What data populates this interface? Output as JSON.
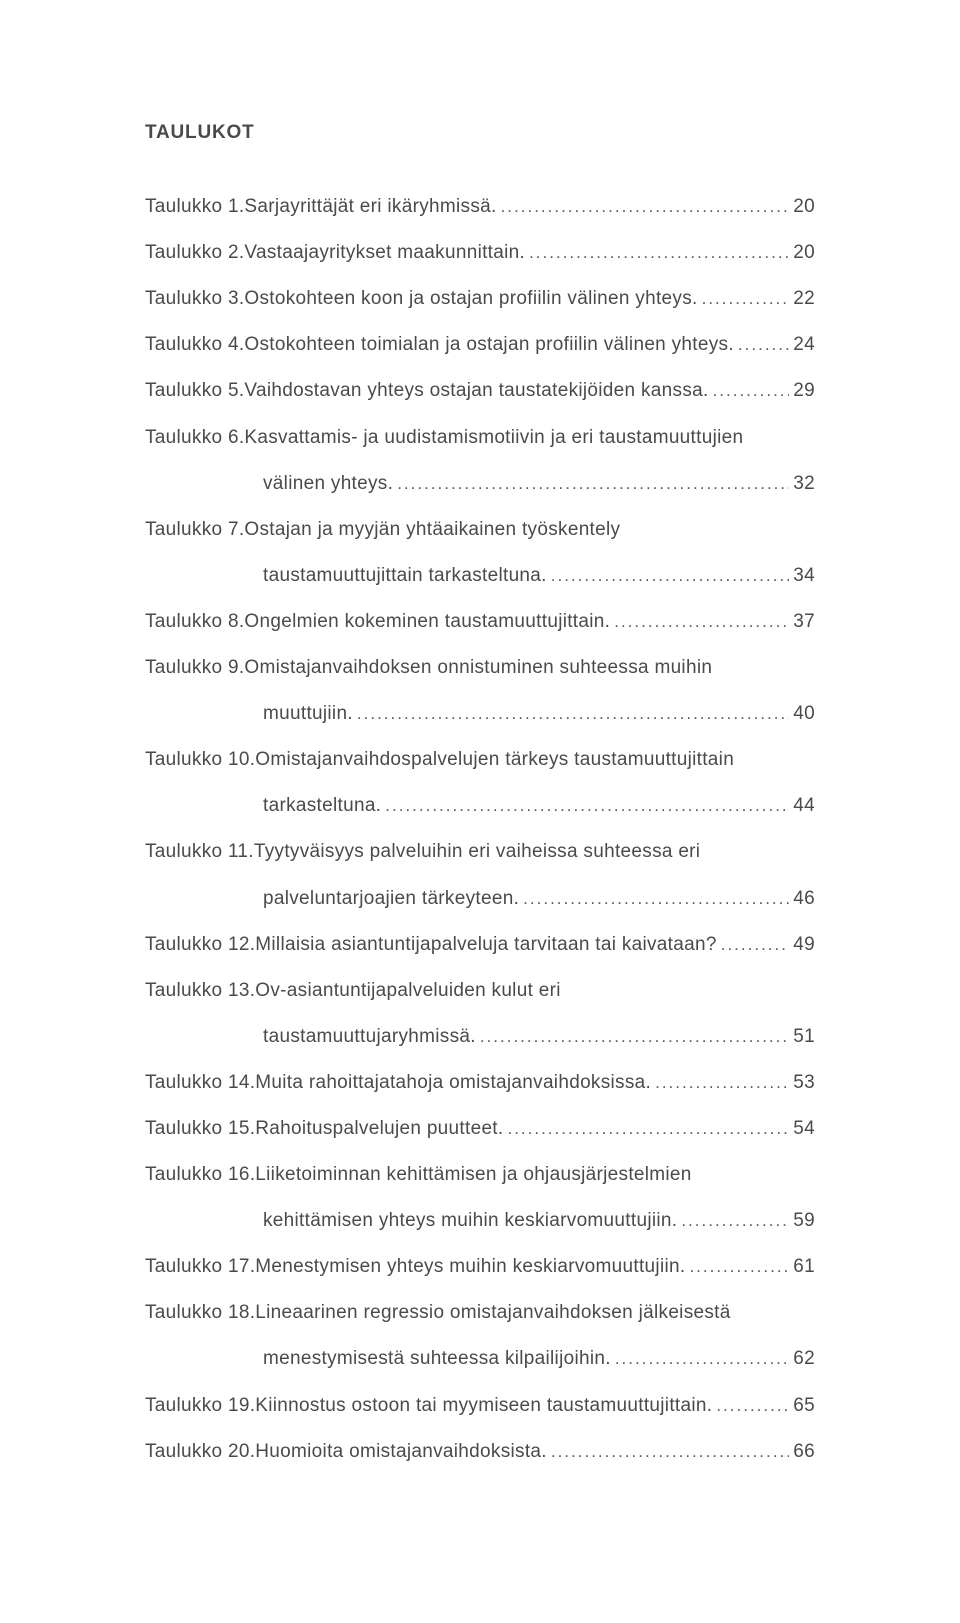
{
  "heading": "TAULUKOT",
  "entries": [
    {
      "label": "Taulukko 1.",
      "lines": [
        "Sarjayrittäjät eri ikäryhmissä."
      ],
      "page": "20"
    },
    {
      "label": "Taulukko 2.",
      "lines": [
        "Vastaajayritykset maakunnittain."
      ],
      "page": "20"
    },
    {
      "label": "Taulukko 3.",
      "lines": [
        "Ostokohteen koon ja ostajan profiilin välinen yhteys."
      ],
      "page": "22"
    },
    {
      "label": "Taulukko 4.",
      "lines": [
        "Ostokohteen toimialan ja ostajan profiilin välinen yhteys."
      ],
      "page": "24"
    },
    {
      "label": "Taulukko 5.",
      "lines": [
        "Vaihdostavan yhteys ostajan taustatekijöiden kanssa."
      ],
      "page": "29"
    },
    {
      "label": "Taulukko 6.",
      "lines": [
        "Kasvattamis- ja uudistamismotiivin ja eri taustamuuttujien",
        "välinen yhteys."
      ],
      "page": "32"
    },
    {
      "label": "Taulukko 7.",
      "lines": [
        "Ostajan ja myyjän yhtäaikainen työskentely",
        "taustamuuttujittain tarkasteltuna."
      ],
      "page": "34"
    },
    {
      "label": "Taulukko 8.",
      "lines": [
        "Ongelmien kokeminen taustamuuttujittain."
      ],
      "page": "37"
    },
    {
      "label": "Taulukko 9.",
      "lines": [
        "Omistajanvaihdoksen onnistuminen suhteessa muihin",
        "muuttujiin."
      ],
      "page": "40"
    },
    {
      "label": "Taulukko 10.",
      "lines": [
        "Omistajanvaihdospalvelujen tärkeys taustamuuttujittain",
        "tarkasteltuna."
      ],
      "page": "44"
    },
    {
      "label": "Taulukko 11.",
      "lines": [
        "Tyytyväisyys palveluihin eri vaiheissa suhteessa eri",
        "palveluntarjoajien tärkeyteen."
      ],
      "page": "46"
    },
    {
      "label": "Taulukko 12.",
      "lines": [
        "Millaisia asiantuntijapalveluja tarvitaan tai kaivataan?"
      ],
      "page": "49"
    },
    {
      "label": "Taulukko 13.",
      "lines": [
        "Ov-asiantuntijapalveluiden kulut eri",
        "taustamuuttujaryhmissä."
      ],
      "page": "51"
    },
    {
      "label": "Taulukko 14.",
      "lines": [
        "Muita rahoittajatahoja omistajanvaihdoksissa."
      ],
      "page": "53"
    },
    {
      "label": "Taulukko 15.",
      "lines": [
        "Rahoituspalvelujen puutteet."
      ],
      "page": "54"
    },
    {
      "label": "Taulukko 16.",
      "lines": [
        "Liiketoiminnan kehittämisen ja ohjausjärjestelmien",
        "kehittämisen yhteys muihin keskiarvomuuttujiin."
      ],
      "page": "59"
    },
    {
      "label": "Taulukko 17.",
      "lines": [
        "Menestymisen yhteys muihin keskiarvomuuttujiin."
      ],
      "page": "61"
    },
    {
      "label": "Taulukko 18.",
      "lines": [
        "Lineaarinen regressio omistajanvaihdoksen jälkeisestä",
        "menestymisestä suhteessa kilpailijoihin."
      ],
      "page": "62"
    },
    {
      "label": "Taulukko 19.",
      "lines": [
        "Kiinnostus ostoon tai myymiseen taustamuuttujittain."
      ],
      "page": "65"
    },
    {
      "label": "Taulukko 20.",
      "lines": [
        "Huomioita omistajanvaihdoksista."
      ],
      "page": "66"
    }
  ]
}
